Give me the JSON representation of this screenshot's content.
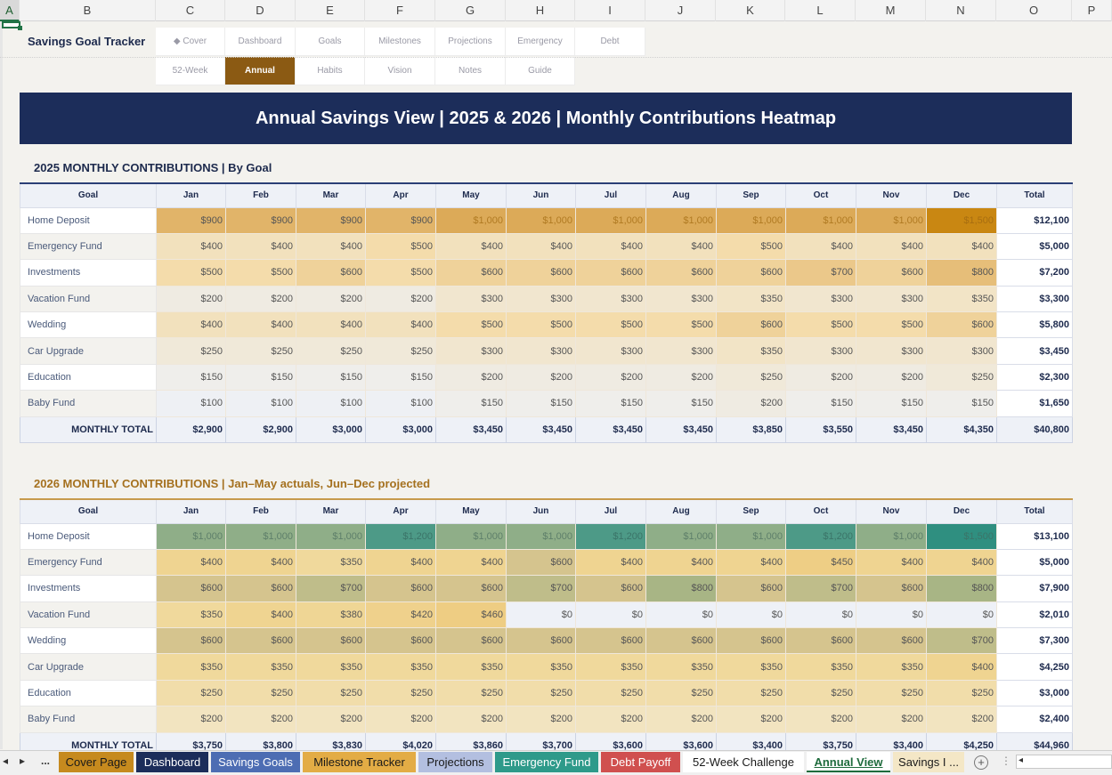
{
  "columns": [
    "A",
    "B",
    "C",
    "D",
    "E",
    "F",
    "G",
    "H",
    "I",
    "J",
    "K",
    "L",
    "M",
    "N",
    "O",
    "P"
  ],
  "app_title": "Savings Goal Tracker",
  "nav_row1": [
    "◆ Cover",
    "Dashboard",
    "Goals",
    "Milestones",
    "Projections",
    "Emergency",
    "Debt"
  ],
  "nav_row2": [
    "52-Week",
    "Annual",
    "Habits",
    "Vision",
    "Notes",
    "Guide"
  ],
  "active_nav": "Annual",
  "banner": "Annual Savings View  |  2025 & 2026  |  Monthly Contributions Heatmap",
  "section1": {
    "title": "2025 MONTHLY CONTRIBUTIONS  |  By Goal",
    "headers": [
      "Goal",
      "Jan",
      "Feb",
      "Mar",
      "Apr",
      "May",
      "Jun",
      "Jul",
      "Aug",
      "Sep",
      "Oct",
      "Nov",
      "Dec",
      "Total"
    ],
    "rows": [
      {
        "goal": "Home Deposit",
        "values": [
          "$900",
          "$900",
          "$900",
          "$900",
          "$1,000",
          "$1,000",
          "$1,000",
          "$1,000",
          "$1,000",
          "$1,000",
          "$1,000",
          "$1,500"
        ],
        "total": "$12,100"
      },
      {
        "goal": "Emergency Fund",
        "values": [
          "$400",
          "$400",
          "$400",
          "$500",
          "$400",
          "$400",
          "$400",
          "$400",
          "$500",
          "$400",
          "$400",
          "$400"
        ],
        "total": "$5,000"
      },
      {
        "goal": "Investments",
        "values": [
          "$500",
          "$500",
          "$600",
          "$500",
          "$600",
          "$600",
          "$600",
          "$600",
          "$600",
          "$700",
          "$600",
          "$800"
        ],
        "total": "$7,200"
      },
      {
        "goal": "Vacation Fund",
        "values": [
          "$200",
          "$200",
          "$200",
          "$200",
          "$300",
          "$300",
          "$300",
          "$300",
          "$350",
          "$300",
          "$300",
          "$350"
        ],
        "total": "$3,300"
      },
      {
        "goal": "Wedding",
        "values": [
          "$400",
          "$400",
          "$400",
          "$400",
          "$500",
          "$500",
          "$500",
          "$500",
          "$600",
          "$500",
          "$500",
          "$600"
        ],
        "total": "$5,800"
      },
      {
        "goal": "Car Upgrade",
        "values": [
          "$250",
          "$250",
          "$250",
          "$250",
          "$300",
          "$300",
          "$300",
          "$300",
          "$350",
          "$300",
          "$300",
          "$300"
        ],
        "total": "$3,450"
      },
      {
        "goal": "Education",
        "values": [
          "$150",
          "$150",
          "$150",
          "$150",
          "$200",
          "$200",
          "$200",
          "$200",
          "$250",
          "$200",
          "$200",
          "$250"
        ],
        "total": "$2,300"
      },
      {
        "goal": "Baby Fund",
        "values": [
          "$100",
          "$100",
          "$100",
          "$100",
          "$150",
          "$150",
          "$150",
          "$150",
          "$200",
          "$150",
          "$150",
          "$150"
        ],
        "total": "$1,650"
      }
    ],
    "total_row": {
      "label": "MONTHLY TOTAL",
      "values": [
        "$2,900",
        "$2,900",
        "$3,000",
        "$3,000",
        "$3,450",
        "$3,450",
        "$3,450",
        "$3,450",
        "$3,850",
        "$3,550",
        "$3,450",
        "$4,350"
      ],
      "total": "$40,800"
    }
  },
  "section2": {
    "title": "2026 MONTHLY CONTRIBUTIONS  |  Jan–May actuals, Jun–Dec projected",
    "headers": [
      "Goal",
      "Jan",
      "Feb",
      "Mar",
      "Apr",
      "May",
      "Jun",
      "Jul",
      "Aug",
      "Sep",
      "Oct",
      "Nov",
      "Dec",
      "Total"
    ],
    "rows": [
      {
        "goal": "Home Deposit",
        "values": [
          "$1,000",
          "$1,000",
          "$1,000",
          "$1,200",
          "$1,000",
          "$1,000",
          "$1,200",
          "$1,000",
          "$1,000",
          "$1,200",
          "$1,000",
          "$1,500"
        ],
        "total": "$13,100"
      },
      {
        "goal": "Emergency Fund",
        "values": [
          "$400",
          "$400",
          "$350",
          "$400",
          "$400",
          "$600",
          "$400",
          "$400",
          "$400",
          "$450",
          "$400",
          "$400"
        ],
        "total": "$5,000"
      },
      {
        "goal": "Investments",
        "values": [
          "$600",
          "$600",
          "$700",
          "$600",
          "$600",
          "$700",
          "$600",
          "$800",
          "$600",
          "$700",
          "$600",
          "$800"
        ],
        "total": "$7,900"
      },
      {
        "goal": "Vacation Fund",
        "values": [
          "$350",
          "$400",
          "$380",
          "$420",
          "$460",
          "$0",
          "$0",
          "$0",
          "$0",
          "$0",
          "$0",
          "$0"
        ],
        "total": "$2,010"
      },
      {
        "goal": "Wedding",
        "values": [
          "$600",
          "$600",
          "$600",
          "$600",
          "$600",
          "$600",
          "$600",
          "$600",
          "$600",
          "$600",
          "$600",
          "$700"
        ],
        "total": "$7,300"
      },
      {
        "goal": "Car Upgrade",
        "values": [
          "$350",
          "$350",
          "$350",
          "$350",
          "$350",
          "$350",
          "$350",
          "$350",
          "$350",
          "$350",
          "$350",
          "$400"
        ],
        "total": "$4,250"
      },
      {
        "goal": "Education",
        "values": [
          "$250",
          "$250",
          "$250",
          "$250",
          "$250",
          "$250",
          "$250",
          "$250",
          "$250",
          "$250",
          "$250",
          "$250"
        ],
        "total": "$3,000"
      },
      {
        "goal": "Baby Fund",
        "values": [
          "$200",
          "$200",
          "$200",
          "$200",
          "$200",
          "$200",
          "$200",
          "$200",
          "$200",
          "$200",
          "$200",
          "$200"
        ],
        "total": "$2,400"
      }
    ],
    "total_row": {
      "label": "MONTHLY TOTAL",
      "values": [
        "$3,750",
        "$3,800",
        "$3,830",
        "$4,020",
        "$3,860",
        "$3,700",
        "$3,600",
        "$3,600",
        "$3,400",
        "$3,750",
        "$3,400",
        "$4,250"
      ],
      "total": "$44,960"
    }
  },
  "sheet_tabs": [
    {
      "label": "Cover Page",
      "color": "#c68a1e",
      "text": "#1a1a1a"
    },
    {
      "label": "Dashboard",
      "color": "#1c2d5a",
      "text": "#ffffff"
    },
    {
      "label": "Savings Goals",
      "color": "#4d6db3",
      "text": "#ffffff"
    },
    {
      "label": "Milestone Tracker",
      "color": "#e3ac45",
      "text": "#1a1a1a"
    },
    {
      "label": "Projections",
      "color": "#b3bfe0",
      "text": "#1a1a1a"
    },
    {
      "label": "Emergency Fund",
      "color": "#2e9a8a",
      "text": "#ffffff"
    },
    {
      "label": "Debt Payoff",
      "color": "#d0504f",
      "text": "#ffffff"
    },
    {
      "label": "52-Week Challenge",
      "color": "#ffffff",
      "text": "#1a1a1a"
    },
    {
      "label": "Annual View",
      "color": "#ffffff",
      "text": "#1e6b3c"
    },
    {
      "label": "Savings I ...",
      "color": "#f4e7c6",
      "text": "#1a1a1a"
    }
  ],
  "active_tab": "Annual View",
  "tab_ellipsis": "...",
  "add_sheet": "+",
  "more_options": "⋮",
  "scroll_left": "◂",
  "tab_prev": "▸"
}
